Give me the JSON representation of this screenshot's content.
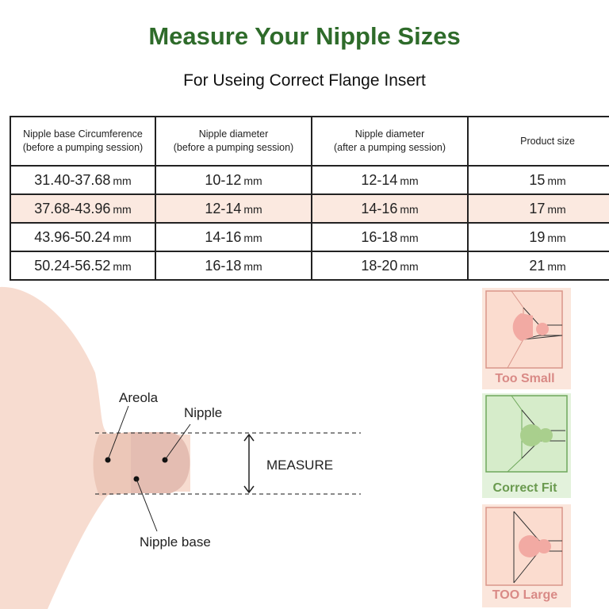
{
  "title": "Measure Your Nipple Sizes",
  "subtitle": "For Useing Correct Flange Insert",
  "table": {
    "headers": [
      [
        "Nipple base Circumference",
        "(before a pumping session)"
      ],
      [
        "Nipple diameter",
        "(before a pumping session)"
      ],
      [
        "Nipple diameter",
        "(after a pumping session)"
      ],
      [
        "Product size",
        ""
      ]
    ],
    "unit": "mm",
    "rows": [
      [
        "31.40-37.68",
        "10-12",
        "12-14",
        "15"
      ],
      [
        "37.68-43.96",
        "12-14",
        "14-16",
        "17"
      ],
      [
        "43.96-50.24",
        "14-16",
        "16-18",
        "19"
      ],
      [
        "50.24-56.52",
        "16-18",
        "18-20",
        "21"
      ]
    ],
    "highlight_row": 1,
    "highlight_color": "#fbe9e0"
  },
  "diagram": {
    "areola": "Areola",
    "nipple": "Nipple",
    "nipple_base": "Nipple base",
    "measure": "MEASURE"
  },
  "fits": [
    {
      "label": "Too Small",
      "color": "#d98a86"
    },
    {
      "label": "Correct Fit",
      "color": "#6a9a4f"
    },
    {
      "label": "TOO Large",
      "color": "#d98a86"
    }
  ]
}
